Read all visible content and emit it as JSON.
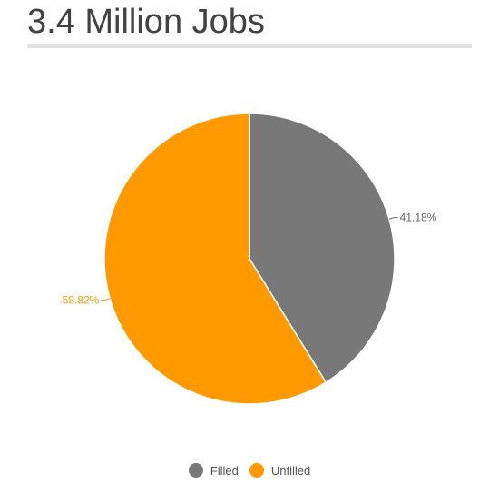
{
  "title": "3.4 Million Jobs",
  "chart_data": {
    "type": "pie",
    "title": "3.4 Million Jobs",
    "categories": [
      "Filled",
      "Unfilled"
    ],
    "values": [
      41.18,
      58.82
    ],
    "labels": [
      "41.18%",
      "58.82%"
    ],
    "colors": [
      "#787878",
      "#ff9900"
    ],
    "label_colors": [
      "#666666",
      "#ff9900"
    ],
    "legend_position": "bottom"
  }
}
